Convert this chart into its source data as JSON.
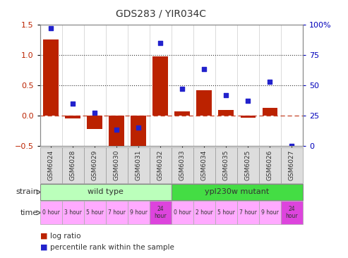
{
  "title": "GDS283 / YIR034C",
  "samples": [
    "GSM6024",
    "GSM6028",
    "GSM6029",
    "GSM6030",
    "GSM6031",
    "GSM6032",
    "GSM6033",
    "GSM6034",
    "GSM6035",
    "GSM6025",
    "GSM6026",
    "GSM6027"
  ],
  "log_ratio": [
    1.25,
    -0.05,
    -0.22,
    -0.55,
    -0.62,
    0.97,
    0.07,
    0.42,
    0.09,
    -0.04,
    0.13,
    0.0
  ],
  "percentile": [
    97,
    35,
    27,
    13,
    15,
    85,
    47,
    63,
    42,
    37,
    53,
    0
  ],
  "left_ylim": [
    -0.5,
    1.5
  ],
  "right_ylim": [
    0,
    100
  ],
  "left_yticks": [
    -0.5,
    0.0,
    0.5,
    1.0,
    1.5
  ],
  "right_yticks": [
    0,
    25,
    50,
    75,
    100
  ],
  "hlines_dotted": [
    1.0,
    0.5
  ],
  "bar_color": "#bb2200",
  "dot_color": "#2222cc",
  "strain_wt_color": "#bbffbb",
  "strain_mut_color": "#44dd44",
  "time_color_light": "#ffaaff",
  "time_color_dark": "#dd44dd",
  "wild_type_label": "wild type",
  "mutant_label": "ypl230w mutant",
  "strain_label": "strain",
  "time_label": "time",
  "time_labels_wt": [
    "0 hour",
    "3 hour",
    "5 hour",
    "7 hour",
    "9 hour",
    "24\nhour"
  ],
  "time_labels_mut": [
    "0 hour",
    "2 hour",
    "5 hour",
    "7 hour",
    "9 hour",
    "24\nhour"
  ],
  "legend_ratio": "log ratio",
  "legend_pct": "percentile rank within the sample",
  "wt_count": 6,
  "mut_count": 6,
  "right_axis_color": "#0000bb",
  "left_axis_color": "#bb2200",
  "zero_line_color": "#bb2200",
  "bg_color": "#ffffff",
  "plot_bg": "#ffffff",
  "sample_bg": "#dddddd",
  "grid_color": "#cccccc"
}
